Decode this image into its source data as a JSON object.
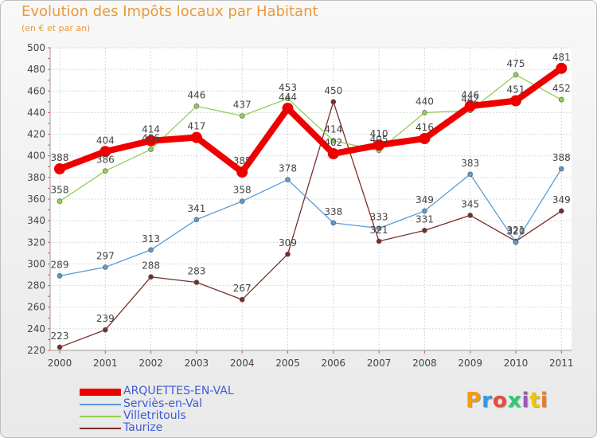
{
  "chart_data": {
    "type": "line",
    "title": "Evolution des Impôts locaux par Habitant",
    "subtitle": "(en € et par an)",
    "categories": [
      "2000",
      "2001",
      "2002",
      "2003",
      "2004",
      "2005",
      "2006",
      "2007",
      "2008",
      "2009",
      "2010",
      "2011"
    ],
    "ylim": [
      220,
      500
    ],
    "yticks": [
      220,
      240,
      260,
      280,
      300,
      320,
      340,
      360,
      380,
      400,
      420,
      440,
      460,
      480,
      500
    ],
    "grid": true,
    "legend_position": "bottom-left",
    "series": [
      {
        "name": "ARQUETTES-EN-VAL",
        "color": "#ee0000",
        "values": [
          388,
          404,
          414,
          417,
          385,
          444,
          402,
          410,
          416,
          446,
          451,
          481
        ]
      },
      {
        "name": "Serviès-en-Val",
        "color": "#5b9bd5",
        "values": [
          289,
          297,
          313,
          341,
          358,
          378,
          338,
          333,
          349,
          383,
          320,
          388
        ]
      },
      {
        "name": "Villetritouls",
        "color": "#92d050",
        "values": [
          358,
          386,
          406,
          446,
          437,
          453,
          414,
          405,
          440,
          442,
          475,
          452
        ]
      },
      {
        "name": "Taurize",
        "color": "#7b2b2b",
        "values": [
          223,
          239,
          288,
          283,
          267,
          309,
          450,
          321,
          331,
          345,
          321,
          349
        ]
      }
    ],
    "data_labels": {
      "ARQUETTES-EN-VAL": [
        "388",
        "404",
        "414",
        "417",
        "385",
        "444",
        "402",
        "410",
        "416",
        "446",
        "451",
        "481"
      ],
      "Serviès-en-Val": [
        "289",
        "297",
        "313",
        "341",
        "358",
        "378",
        "338",
        "333",
        "349",
        "383",
        "320",
        "388"
      ],
      "Villetritouls": [
        "358",
        "386",
        "406",
        "446",
        "437",
        "453",
        "414",
        "405",
        "440",
        "442",
        "475",
        "452"
      ],
      "Taurize": [
        "223",
        "239",
        "288",
        "283",
        "267",
        "309",
        "450",
        "321",
        "331",
        "345",
        "321",
        "349"
      ]
    }
  },
  "branding": {
    "logo_letters": [
      "P",
      "r",
      "o",
      "x",
      "i",
      "t",
      "i"
    ],
    "logo_colors": [
      "#f39c12",
      "#3498db",
      "#e74c3c",
      "#2ecc71",
      "#9b59b6",
      "#f1c40f",
      "#e67e22"
    ]
  }
}
